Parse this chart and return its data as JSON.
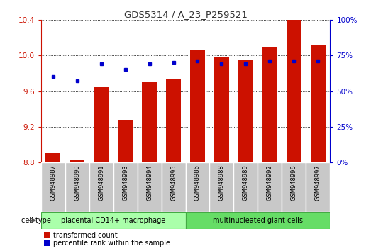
{
  "title": "GDS5314 / A_23_P259521",
  "categories": [
    "GSM948987",
    "GSM948990",
    "GSM948991",
    "GSM948993",
    "GSM948994",
    "GSM948995",
    "GSM948986",
    "GSM948988",
    "GSM948989",
    "GSM948992",
    "GSM948996",
    "GSM948997"
  ],
  "red_values": [
    8.9,
    8.82,
    9.65,
    9.28,
    9.7,
    9.73,
    10.06,
    9.98,
    9.95,
    10.1,
    10.4,
    10.12
  ],
  "blue_percentile": [
    60,
    57,
    69,
    65,
    69,
    70,
    71,
    69,
    69,
    71,
    71,
    71
  ],
  "group1_label": "placental CD14+ macrophage",
  "group2_label": "multinucleated giant cells",
  "group1_count": 6,
  "group2_count": 6,
  "cell_type_label": "cell type",
  "legend1": "transformed count",
  "legend2": "percentile rank within the sample",
  "ylim_left": [
    8.8,
    10.4
  ],
  "ylim_right": [
    0,
    100
  ],
  "yticks_left": [
    8.8,
    9.2,
    9.6,
    10.0,
    10.4
  ],
  "yticks_right": [
    0,
    25,
    50,
    75,
    100
  ],
  "red_color": "#CC1100",
  "blue_color": "#0000CC",
  "bar_bg_color": "#C8C8C8",
  "group1_bg": "#AAFFAA",
  "group2_bg": "#66DD66",
  "title_color": "#333333",
  "axis_color_left": "#CC1100",
  "axis_color_right": "#0000CC",
  "bar_width": 0.6
}
